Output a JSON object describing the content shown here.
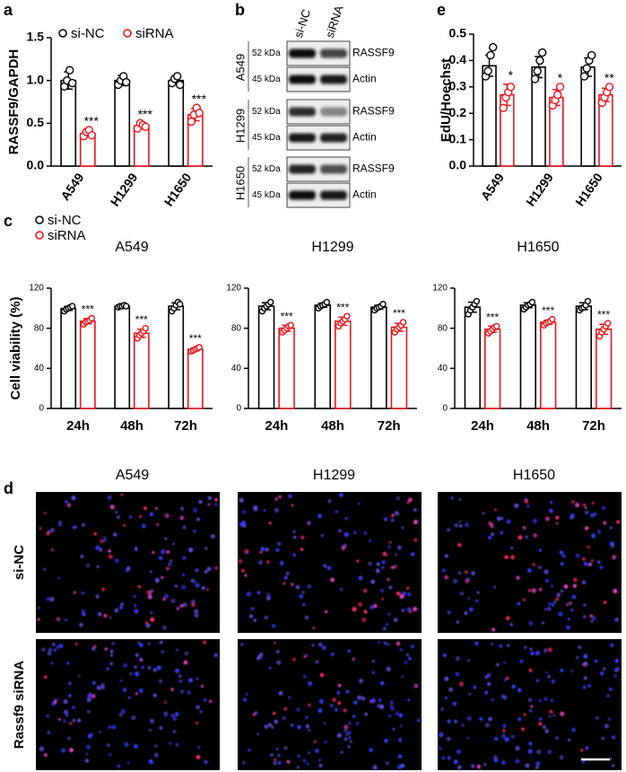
{
  "panel_labels": [
    "a",
    "b",
    "c",
    "d",
    "e"
  ],
  "chart_data": [
    {
      "type": "bar",
      "ylabel": "RASSF9/GAPDH",
      "categories": [
        "A549",
        "H1299",
        "H1650"
      ],
      "ylim": [
        0,
        1.5
      ],
      "yticks": [
        {
          "value": 0,
          "label": "0.0"
        },
        0.5,
        {
          "value": 1,
          "label": "1.0"
        },
        1.5
      ],
      "legend": true,
      "series": [
        {
          "name": "si-NC",
          "color": "#000000",
          "values": [
            1.0,
            1.0,
            1.0
          ],
          "errors": [
            0.1,
            0.06,
            0.05
          ],
          "points": [
            [
              0.93,
              1.0,
              1.12,
              0.97
            ],
            [
              0.95,
              1.0,
              1.05,
              0.98
            ],
            [
              0.97,
              1.02,
              1.05,
              0.95
            ]
          ]
        },
        {
          "name": "siRNA",
          "color": "#e8141b",
          "values": [
            0.38,
            0.47,
            0.6
          ],
          "errors": [
            0.03,
            0.03,
            0.07
          ],
          "points": [
            [
              0.35,
              0.4,
              0.42,
              0.36
            ],
            [
              0.44,
              0.5,
              0.48,
              0.46
            ],
            [
              0.52,
              0.6,
              0.68,
              0.62
            ]
          ]
        }
      ],
      "annotations": [
        "***",
        "***",
        "***"
      ]
    },
    {
      "type": "bar",
      "title": "A549",
      "ylabel": "Cell viability (%)",
      "categories": [
        "24h",
        "48h",
        "72h"
      ],
      "ylim": [
        0,
        120
      ],
      "yticks": [
        0,
        40,
        80,
        120
      ],
      "legend": true,
      "series": [
        {
          "name": "si-NC",
          "color": "#000000",
          "values": [
            99.8,
            102,
            102
          ],
          "errors": [
            2,
            1,
            3.5
          ],
          "points": [
            [
              97,
              99,
              100,
              101,
              102
            ],
            [
              101,
              102,
              102,
              103,
              102
            ],
            [
              97,
              100,
              103,
              106,
              104
            ]
          ]
        },
        {
          "name": "siRNA",
          "color": "#e8141b",
          "values": [
            87,
            75,
            59
          ],
          "errors": [
            2.5,
            4,
            1.5
          ],
          "points": [
            [
              84,
              86,
              87,
              88,
              90
            ],
            [
              70,
              73,
              75,
              77,
              80
            ],
            [
              57,
              58,
              59,
              60,
              61
            ]
          ]
        }
      ],
      "annotations": [
        "***",
        "***",
        "***"
      ]
    },
    {
      "type": "bar",
      "title": "H1299",
      "categories": [
        "24h",
        "48h",
        "72h"
      ],
      "ylim": [
        0,
        120
      ],
      "yticks": [
        0,
        40,
        80,
        120
      ],
      "series": [
        {
          "color": "#000000",
          "values": [
            102,
            103,
            101
          ],
          "errors": [
            3.5,
            2,
            2
          ],
          "points": [
            [
              97,
              100,
              102,
              104,
              106
            ],
            [
              100,
              102,
              103,
              104,
              106
            ],
            [
              98,
              100,
              101,
              102,
              104
            ]
          ]
        },
        {
          "color": "#e8141b",
          "values": [
            80,
            87,
            81
          ],
          "errors": [
            3,
            4,
            4
          ],
          "points": [
            [
              76,
              78,
              80,
              82,
              83
            ],
            [
              82,
              85,
              87,
              89,
              92
            ],
            [
              76,
              79,
              81,
              83,
              86
            ]
          ]
        }
      ],
      "annotations": [
        "***",
        "***",
        "***"
      ]
    },
    {
      "type": "bar",
      "title": "H1650",
      "categories": [
        "24h",
        "48h",
        "72h"
      ],
      "ylim": [
        0,
        120
      ],
      "yticks": [
        0,
        40,
        80,
        120
      ],
      "series": [
        {
          "color": "#000000",
          "values": [
            101,
            103,
            102
          ],
          "errors": [
            5,
            2.5,
            3.5
          ],
          "points": [
            [
              94,
              98,
              101,
              104,
              107
            ],
            [
              99,
              101,
              103,
              104,
              106
            ],
            [
              98,
              100,
              101,
              103,
              107
            ]
          ]
        },
        {
          "color": "#e8141b",
          "values": [
            79,
            86,
            79
          ],
          "errors": [
            3,
            2,
            5
          ],
          "points": [
            [
              75,
              77,
              79,
              81,
              82
            ],
            [
              83,
              85,
              86,
              87,
              89
            ],
            [
              72,
              76,
              79,
              82,
              85
            ]
          ]
        }
      ],
      "annotations": [
        "***",
        "***",
        "***"
      ]
    },
    {
      "type": "bar",
      "ylabel": "EdU/Hoechst",
      "categories": [
        "A549",
        "H1299",
        "H1650"
      ],
      "ylim": [
        0,
        0.5
      ],
      "yticks": [
        {
          "value": 0,
          "label": "0.0"
        },
        0.1,
        0.2,
        0.3,
        0.4,
        0.5
      ],
      "series": [
        {
          "color": "#000000",
          "values": [
            0.38,
            0.375,
            0.375
          ],
          "errors": [
            0.04,
            0.04,
            0.035
          ],
          "points": [
            [
              0.34,
              0.36,
              0.42,
              0.45
            ],
            [
              0.33,
              0.36,
              0.4,
              0.43
            ],
            [
              0.34,
              0.37,
              0.4,
              0.42
            ]
          ]
        },
        {
          "color": "#e8141b",
          "values": [
            0.27,
            0.26,
            0.27
          ],
          "errors": [
            0.04,
            0.03,
            0.025
          ],
          "points": [
            [
              0.22,
              0.26,
              0.28,
              0.3
            ],
            [
              0.23,
              0.25,
              0.27,
              0.3
            ],
            [
              0.24,
              0.26,
              0.28,
              0.3
            ]
          ]
        }
      ],
      "annotations": [
        "*",
        "*",
        "**"
      ]
    }
  ],
  "blot": {
    "lanes": [
      "si-NC",
      "siRNA"
    ],
    "groups": [
      {
        "cell": "A549",
        "rows": [
          {
            "size": "52 kDa",
            "protein": "RASSF9"
          },
          {
            "size": "45 kDa",
            "protein": "Actin"
          }
        ]
      },
      {
        "cell": "H1299",
        "rows": [
          {
            "size": "52 kDa",
            "protein": "RASSF9"
          },
          {
            "size": "45 kDa",
            "protein": "Actin"
          }
        ]
      },
      {
        "cell": "H1650",
        "rows": [
          {
            "size": "52 kDa",
            "protein": "RASSF9"
          },
          {
            "size": "45 kDa",
            "protein": "Actin"
          }
        ]
      }
    ]
  },
  "images": {
    "columns": [
      "A549",
      "H1299",
      "H1650"
    ],
    "rows": [
      "si-NC",
      "Rassf9 siRNA"
    ]
  }
}
